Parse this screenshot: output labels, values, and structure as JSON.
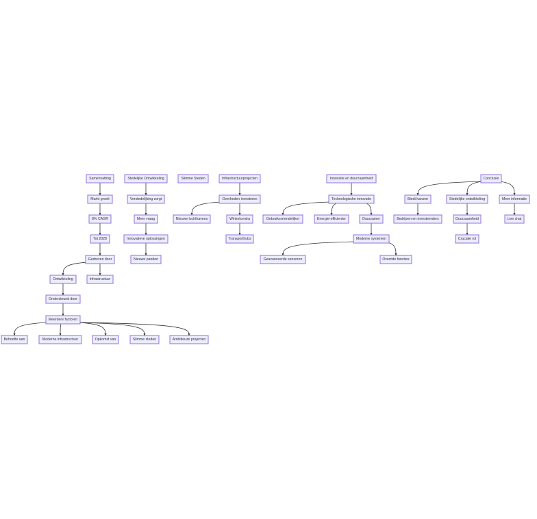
{
  "diagram": {
    "type": "flowchart",
    "colors": {
      "node_fill": "#ececff",
      "node_stroke": "#9370db",
      "edge": "#333333"
    },
    "nodes": [
      {
        "id": "n1",
        "label": "Samenvatting"
      },
      {
        "id": "n2",
        "label": "Markt groeit"
      },
      {
        "id": "n3",
        "label": "8% CAGR"
      },
      {
        "id": "n4",
        "label": "Tot 2028"
      },
      {
        "id": "n5",
        "label": "Gedreven door"
      },
      {
        "id": "n6",
        "label": "Ontwikkeling"
      },
      {
        "id": "n7",
        "label": "Infrastructuur"
      },
      {
        "id": "n8",
        "label": "Ondersteund door"
      },
      {
        "id": "n9",
        "label": "Meerdere factoren"
      },
      {
        "id": "n10",
        "label": "Behoefte aan"
      },
      {
        "id": "n11",
        "label": "Moderne infrastructuur"
      },
      {
        "id": "n12",
        "label": "Opkomst van"
      },
      {
        "id": "n13",
        "label": "Slimme steden"
      },
      {
        "id": "n14",
        "label": "Ambitieuze projecten"
      },
      {
        "id": "n15",
        "label": "Stedelijke Ontwikkeling"
      },
      {
        "id": "n16",
        "label": "Verstedelijking zorgt"
      },
      {
        "id": "n17",
        "label": "Meer vraag"
      },
      {
        "id": "n18",
        "label": "Innovatieve oplossingen"
      },
      {
        "id": "n19",
        "label": "Nieuwe panden"
      },
      {
        "id": "n20",
        "label": "Slimme Steden"
      },
      {
        "id": "n21",
        "label": "Infrastructuurprojecten"
      },
      {
        "id": "n22",
        "label": "Overheden investeren"
      },
      {
        "id": "n23",
        "label": "Nieuwe luchthavens"
      },
      {
        "id": "n24",
        "label": "Winkelcentra"
      },
      {
        "id": "n25",
        "label": "Transporthubs"
      },
      {
        "id": "n26",
        "label": "Innovatie en duurzaamheid"
      },
      {
        "id": "n27",
        "label": "Technologische innovatie"
      },
      {
        "id": "n28",
        "label": "Gebruiksvriendelijker"
      },
      {
        "id": "n29",
        "label": "Energie-efficienter"
      },
      {
        "id": "n30",
        "label": "Duurzamer"
      },
      {
        "id": "n31",
        "label": "Moderne systemen"
      },
      {
        "id": "n32",
        "label": "Geavanceerde sensoren"
      },
      {
        "id": "n33",
        "label": "Override functies"
      },
      {
        "id": "n34",
        "label": "Conclusie"
      },
      {
        "id": "n35",
        "label": "Biedt kansen"
      },
      {
        "id": "n36",
        "label": "Bedrijven en investeerders"
      },
      {
        "id": "n37",
        "label": "Stedelijke ontwikkeling"
      },
      {
        "id": "n38",
        "label": "Duurzaamheid"
      },
      {
        "id": "n39",
        "label": "Cruciale rol"
      },
      {
        "id": "n40",
        "label": "Meer informatie"
      },
      {
        "id": "n41",
        "label": "Live chat"
      }
    ],
    "edges": [
      [
        "n1",
        "n2"
      ],
      [
        "n2",
        "n3"
      ],
      [
        "n3",
        "n4"
      ],
      [
        "n4",
        "n5"
      ],
      [
        "n5",
        "n6"
      ],
      [
        "n5",
        "n7"
      ],
      [
        "n6",
        "n8"
      ],
      [
        "n8",
        "n9"
      ],
      [
        "n9",
        "n10"
      ],
      [
        "n9",
        "n11"
      ],
      [
        "n9",
        "n12"
      ],
      [
        "n9",
        "n13"
      ],
      [
        "n9",
        "n14"
      ],
      [
        "n15",
        "n16"
      ],
      [
        "n16",
        "n17"
      ],
      [
        "n17",
        "n18"
      ],
      [
        "n18",
        "n19"
      ],
      [
        "n21",
        "n22"
      ],
      [
        "n22",
        "n23"
      ],
      [
        "n22",
        "n24"
      ],
      [
        "n24",
        "n25"
      ],
      [
        "n26",
        "n27"
      ],
      [
        "n27",
        "n28"
      ],
      [
        "n27",
        "n29"
      ],
      [
        "n27",
        "n30"
      ],
      [
        "n30",
        "n31"
      ],
      [
        "n31",
        "n32"
      ],
      [
        "n31",
        "n33"
      ],
      [
        "n34",
        "n35"
      ],
      [
        "n35",
        "n36"
      ],
      [
        "n34",
        "n37"
      ],
      [
        "n37",
        "n38"
      ],
      [
        "n38",
        "n39"
      ],
      [
        "n34",
        "n40"
      ],
      [
        "n40",
        "n41"
      ]
    ]
  }
}
